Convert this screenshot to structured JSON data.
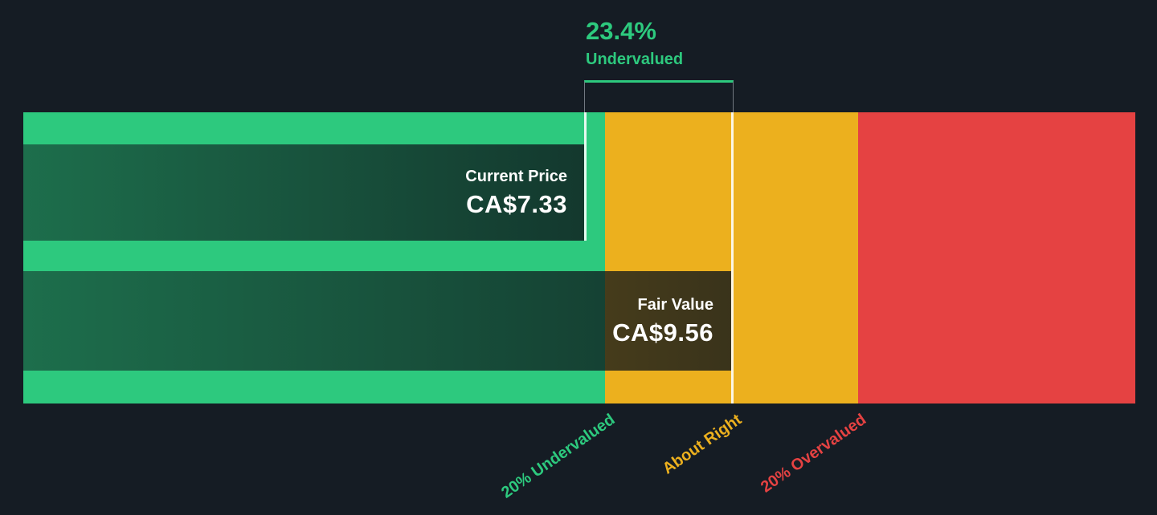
{
  "chart": {
    "discount_badge": {
      "percent": "23.4%",
      "status": "Undervalued"
    },
    "current_price": {
      "label": "Current Price",
      "value": "CA$7.33"
    },
    "fair_value": {
      "label": "Fair Value",
      "value": "CA$9.56"
    },
    "axis_labels": {
      "undervalued": "20% Undervalued",
      "about_right": "About Right",
      "overvalued": "20% Overvalued"
    }
  },
  "colors": {
    "background": "#151c24",
    "undervalued_green": "#2dc97e",
    "about_right_yellow": "#ecb01e",
    "overvalued_red": "#e54242",
    "overlay_bar_dark": "rgba(13,20,26,0.8)",
    "marker_line_white": "#ffffff",
    "text_white": "#ffffff"
  },
  "chart_data": {
    "type": "bar",
    "title": "Current share price vs fair value gauge",
    "currency": "CA$",
    "current_price": 7.33,
    "fair_value": 9.56,
    "undervalued_percent": 23.4,
    "valuation_status": "Undervalued",
    "markers": [
      {
        "name": "current_price",
        "label": "Current Price",
        "display": "CA$7.33",
        "value": 7.33
      },
      {
        "name": "fair_value",
        "label": "Fair Value",
        "display": "CA$9.56",
        "value": 9.56
      }
    ],
    "zones": [
      {
        "label": "20% Undervalued",
        "color": "#2dc97e",
        "boundary": "price below 80% of fair value"
      },
      {
        "label": "About Right",
        "color": "#ecb01e",
        "boundary": "price within 20% of fair value"
      },
      {
        "label": "20% Overvalued",
        "color": "#e54242",
        "boundary": "price above 120% of fair value"
      }
    ],
    "legend_position": "bottom",
    "grid": false
  }
}
